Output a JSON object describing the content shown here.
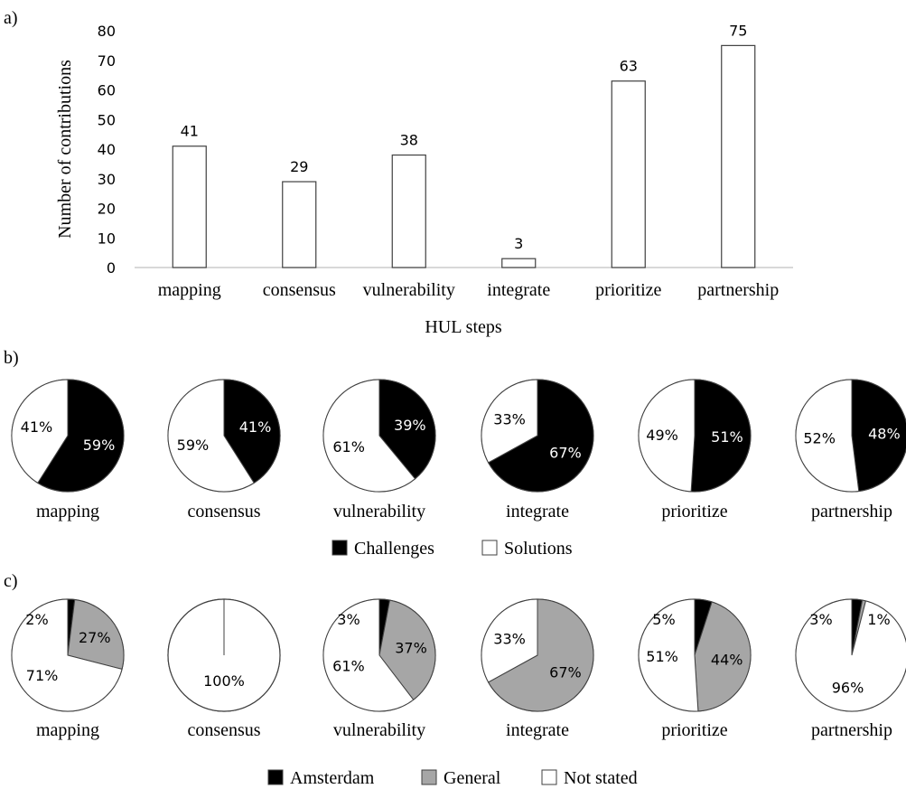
{
  "chart_data": [
    {
      "panel": "a)",
      "type": "bar",
      "categories": [
        "mapping",
        "consensus",
        "vulnerability",
        "integrate",
        "prioritize",
        "partnership"
      ],
      "values": [
        41,
        29,
        38,
        3,
        63,
        75
      ],
      "xlabel": "HUL steps",
      "ylabel": "Number of contributions",
      "ylim": [
        0,
        80
      ],
      "yticks": [
        0,
        10,
        20,
        30,
        40,
        50,
        60,
        70,
        80
      ],
      "bar_color": "#ffffff",
      "grid": false,
      "data_labels": true
    },
    {
      "panel": "b)",
      "type": "pie",
      "legend": [
        {
          "name": "Challenges",
          "color": "#000000"
        },
        {
          "name": "Solutions",
          "color": "#ffffff"
        }
      ],
      "legend_position": "bottom",
      "pies": [
        {
          "label": "mapping",
          "slices": [
            {
              "name": "Challenges",
              "value": 59,
              "text": "59%"
            },
            {
              "name": "Solutions",
              "value": 41,
              "text": "41%"
            }
          ]
        },
        {
          "label": "consensus",
          "slices": [
            {
              "name": "Challenges",
              "value": 41,
              "text": "41%"
            },
            {
              "name": "Solutions",
              "value": 59,
              "text": "59%"
            }
          ]
        },
        {
          "label": "vulnerability",
          "slices": [
            {
              "name": "Challenges",
              "value": 39,
              "text": "39%"
            },
            {
              "name": "Solutions",
              "value": 61,
              "text": "61%"
            }
          ]
        },
        {
          "label": "integrate",
          "slices": [
            {
              "name": "Challenges",
              "value": 67,
              "text": "67%"
            },
            {
              "name": "Solutions",
              "value": 33,
              "text": "33%"
            }
          ]
        },
        {
          "label": "prioritize",
          "slices": [
            {
              "name": "Challenges",
              "value": 51,
              "text": "51%"
            },
            {
              "name": "Solutions",
              "value": 49,
              "text": "49%"
            }
          ]
        },
        {
          "label": "partnership",
          "slices": [
            {
              "name": "Challenges",
              "value": 48,
              "text": "48%"
            },
            {
              "name": "Solutions",
              "value": 52,
              "text": "52%"
            }
          ]
        }
      ]
    },
    {
      "panel": "c)",
      "type": "pie",
      "legend": [
        {
          "name": "Amsterdam",
          "color": "#000000"
        },
        {
          "name": "General",
          "color": "#a6a6a6"
        },
        {
          "name": "Not stated",
          "color": "#ffffff"
        }
      ],
      "legend_position": "bottom",
      "pies": [
        {
          "label": "mapping",
          "slices": [
            {
              "name": "Amsterdam",
              "value": 2,
              "text": "2%"
            },
            {
              "name": "General",
              "value": 27,
              "text": "27%"
            },
            {
              "name": "Not stated",
              "value": 71,
              "text": "71%"
            }
          ]
        },
        {
          "label": "consensus",
          "slices": [
            {
              "name": "Amsterdam",
              "value": 0,
              "text": ""
            },
            {
              "name": "General",
              "value": 0,
              "text": ""
            },
            {
              "name": "Not stated",
              "value": 100,
              "text": "100%"
            }
          ]
        },
        {
          "label": "vulnerability",
          "slices": [
            {
              "name": "Amsterdam",
              "value": 3,
              "text": "3%"
            },
            {
              "name": "General",
              "value": 37,
              "text": "37%"
            },
            {
              "name": "Not stated",
              "value": 61,
              "text": "61%"
            }
          ]
        },
        {
          "label": "integrate",
          "slices": [
            {
              "name": "Amsterdam",
              "value": 0,
              "text": ""
            },
            {
              "name": "General",
              "value": 67,
              "text": "67%"
            },
            {
              "name": "Not stated",
              "value": 33,
              "text": "33%"
            }
          ]
        },
        {
          "label": "prioritize",
          "slices": [
            {
              "name": "Amsterdam",
              "value": 5,
              "text": "5%"
            },
            {
              "name": "General",
              "value": 44,
              "text": "44%"
            },
            {
              "name": "Not stated",
              "value": 51,
              "text": "51%"
            }
          ]
        },
        {
          "label": "partnership",
          "slices": [
            {
              "name": "Amsterdam",
              "value": 3,
              "text": "3%"
            },
            {
              "name": "General",
              "value": 1,
              "text": "1%"
            },
            {
              "name": "Not stated",
              "value": 96,
              "text": "96%"
            }
          ]
        }
      ]
    }
  ]
}
